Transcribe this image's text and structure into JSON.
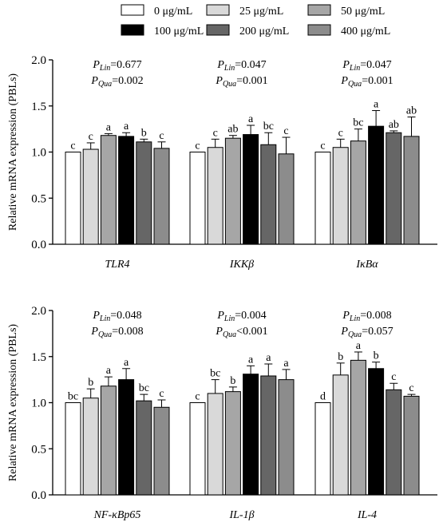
{
  "legend": [
    {
      "label": "0 μg/mL",
      "color": "#ffffff"
    },
    {
      "label": "25 μg/mL",
      "color": "#d9d9d9"
    },
    {
      "label": "50 μg/mL",
      "color": "#a6a6a6"
    },
    {
      "label": "100 μg/mL",
      "color": "#000000"
    },
    {
      "label": "200 μg/mL",
      "color": "#666666"
    },
    {
      "label": "400 μg/mL",
      "color": "#8c8c8c"
    }
  ],
  "chart_data": [
    {
      "type": "bar",
      "ylabel": "Relative mRNA expression (PBLs)",
      "ylim": [
        0,
        2.0
      ],
      "yticks": [
        "0.0",
        "0.5",
        "1.0",
        "1.5",
        "2.0"
      ],
      "groups": [
        {
          "gene": "TLR4",
          "p_lin": "=0.677",
          "p_qua": "=0.002",
          "values": [
            1.0,
            1.03,
            1.18,
            1.17,
            1.11,
            1.04
          ],
          "errors": [
            0.0,
            0.07,
            0.02,
            0.04,
            0.03,
            0.07
          ],
          "letters": [
            "c",
            "c",
            "a",
            "a",
            "b",
            "c"
          ]
        },
        {
          "gene": "IKKβ",
          "p_lin": "=0.047",
          "p_qua": "=0.001",
          "values": [
            1.0,
            1.05,
            1.15,
            1.19,
            1.08,
            0.98
          ],
          "errors": [
            0.0,
            0.09,
            0.03,
            0.1,
            0.13,
            0.18
          ],
          "letters": [
            "c",
            "c",
            "ab",
            "a",
            "bc",
            "c"
          ]
        },
        {
          "gene": "IκBα",
          "p_lin": "=0.047",
          "p_qua": "=0.001",
          "values": [
            1.0,
            1.05,
            1.12,
            1.28,
            1.21,
            1.17
          ],
          "errors": [
            0.0,
            0.09,
            0.13,
            0.17,
            0.02,
            0.21
          ],
          "letters": [
            "c",
            "c",
            "bc",
            "a",
            "ab",
            "ab"
          ]
        }
      ]
    },
    {
      "type": "bar",
      "ylabel": "Relative mRNA expression (PBLs)",
      "ylim": [
        0,
        2.0
      ],
      "yticks": [
        "0.0",
        "0.5",
        "1.0",
        "1.5",
        "2.0"
      ],
      "groups": [
        {
          "gene": "NF-κBp65",
          "p_lin": "=0.048",
          "p_qua": "=0.008",
          "values": [
            1.0,
            1.05,
            1.18,
            1.25,
            1.02,
            0.95
          ],
          "errors": [
            0.0,
            0.1,
            0.1,
            0.12,
            0.07,
            0.08
          ],
          "letters": [
            "bc",
            "b",
            "a",
            "a",
            "bc",
            "c"
          ]
        },
        {
          "gene": "IL-1β",
          "p_lin": "=0.004",
          "p_qua": "<0.001",
          "values": [
            1.0,
            1.1,
            1.12,
            1.31,
            1.29,
            1.25
          ],
          "errors": [
            0.0,
            0.15,
            0.05,
            0.09,
            0.13,
            0.11
          ],
          "letters": [
            "c",
            "bc",
            "b",
            "a",
            "a",
            "a"
          ]
        },
        {
          "gene": "IL-4",
          "p_lin": "=0.008",
          "p_qua": "=0.057",
          "values": [
            1.0,
            1.3,
            1.46,
            1.37,
            1.14,
            1.07
          ],
          "errors": [
            0.0,
            0.13,
            0.09,
            0.07,
            0.07,
            0.02
          ],
          "letters": [
            "d",
            "b",
            "a",
            "b",
            "c",
            "c"
          ]
        }
      ]
    }
  ]
}
